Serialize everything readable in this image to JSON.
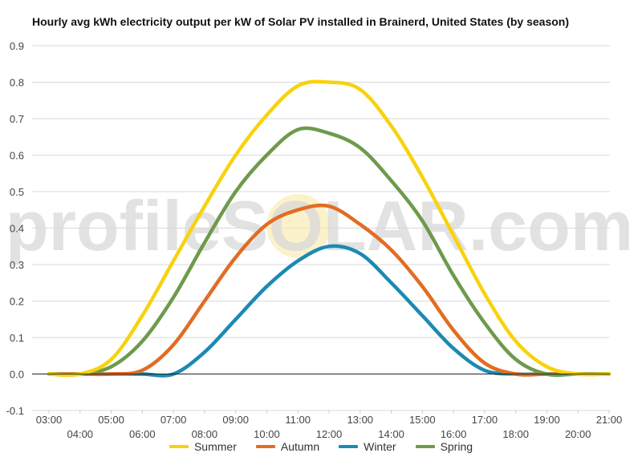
{
  "chart_data": {
    "type": "line",
    "title": "Hourly avg kWh electricity output per kW of Solar PV installed in Brainerd, United States (by season)",
    "xlabel": "",
    "ylabel": "",
    "x": [
      "03:00",
      "04:00",
      "05:00",
      "06:00",
      "07:00",
      "08:00",
      "09:00",
      "10:00",
      "11:00",
      "12:00",
      "13:00",
      "14:00",
      "15:00",
      "16:00",
      "17:00",
      "18:00",
      "19:00",
      "20:00",
      "21:00"
    ],
    "ylim": [
      -0.1,
      0.9
    ],
    "yticks": [
      "-0.1",
      "0.0",
      "0.1",
      "0.2",
      "0.3",
      "0.4",
      "0.5",
      "0.6",
      "0.7",
      "0.8",
      "0.9"
    ],
    "grid": true,
    "legend_position": "bottom",
    "watermark": "profileSOLAR.com",
    "series": [
      {
        "name": "Summer",
        "color": "#f8d20d",
        "values": [
          0.0,
          0.0,
          0.04,
          0.16,
          0.31,
          0.46,
          0.6,
          0.71,
          0.79,
          0.8,
          0.78,
          0.68,
          0.54,
          0.38,
          0.22,
          0.09,
          0.02,
          0.0,
          0.0
        ]
      },
      {
        "name": "Autumn",
        "color": "#e16d23",
        "values": [
          0.0,
          0.0,
          0.0,
          0.01,
          0.08,
          0.2,
          0.32,
          0.41,
          0.45,
          0.46,
          0.41,
          0.34,
          0.24,
          0.12,
          0.03,
          0.0,
          0.0,
          0.0,
          0.0
        ]
      },
      {
        "name": "Winter",
        "color": "#1b8ab3",
        "values": [
          0.0,
          0.0,
          0.0,
          0.0,
          0.0,
          0.06,
          0.15,
          0.24,
          0.31,
          0.35,
          0.33,
          0.25,
          0.16,
          0.07,
          0.01,
          0.0,
          0.0,
          0.0,
          0.0
        ]
      },
      {
        "name": "Spring",
        "color": "#6e9a4c",
        "values": [
          0.0,
          0.0,
          0.02,
          0.09,
          0.21,
          0.36,
          0.5,
          0.6,
          0.67,
          0.66,
          0.62,
          0.53,
          0.42,
          0.27,
          0.14,
          0.04,
          0.0,
          0.0,
          0.0
        ]
      }
    ]
  }
}
